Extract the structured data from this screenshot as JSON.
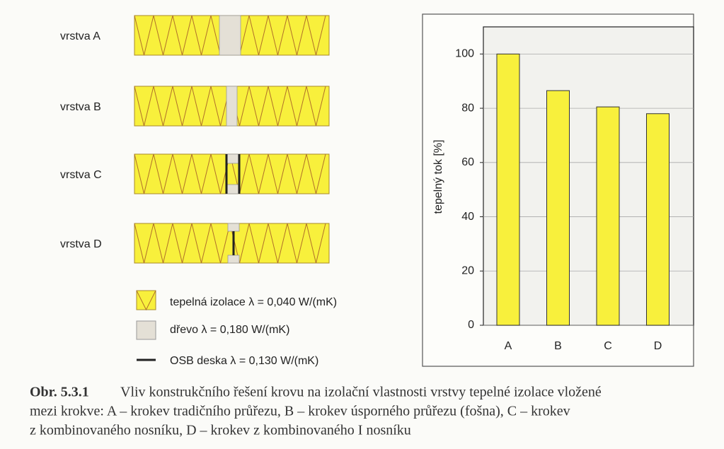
{
  "chart_data": {
    "type": "bar",
    "y_label": "tepelný tok [%]",
    "categories": [
      "A",
      "B",
      "C",
      "D"
    ],
    "values": [
      100,
      86.5,
      80.5,
      78
    ],
    "color": "#f8f03c",
    "ylim": [
      0,
      110
    ],
    "yticks": [
      0,
      20,
      40,
      60,
      80,
      100
    ],
    "grid": true
  },
  "layers": [
    {
      "label": "vrstva A"
    },
    {
      "label": "vrstva B"
    },
    {
      "label": "vrstva C"
    },
    {
      "label": "vrstva D"
    }
  ],
  "legend": [
    {
      "label": "tepelná izolace λ = 0,040 W/(mK)"
    },
    {
      "label": "dřevo λ = 0,180 W/(mK)"
    },
    {
      "label": "OSB deska λ = 0,130 W/(mK)"
    }
  ],
  "caption": {
    "number": "Obr. 5.3.1",
    "lines": [
      "Vliv konstrukčního řešení krovu na izolační vlastnosti vrstvy tepelné izolace vložené",
      "mezi krokve: A – krokev tradičního průřezu, B – krokev úsporného průřezu (fošna), C – krokev",
      "z kombinovaného nosníku, D – krokev z kombinovaného I nosníku"
    ]
  }
}
